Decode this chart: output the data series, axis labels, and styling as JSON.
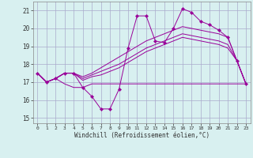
{
  "x": [
    0,
    1,
    2,
    3,
    4,
    5,
    6,
    7,
    8,
    9,
    10,
    11,
    12,
    13,
    14,
    15,
    16,
    17,
    18,
    19,
    20,
    21,
    22,
    23
  ],
  "temp_line": [
    17.5,
    17.0,
    17.2,
    17.5,
    17.5,
    16.7,
    16.2,
    15.5,
    15.5,
    16.6,
    18.9,
    20.7,
    20.7,
    19.3,
    19.2,
    20.0,
    21.1,
    20.9,
    20.4,
    20.2,
    19.9,
    19.5,
    18.2,
    16.9
  ],
  "min_line": [
    17.5,
    17.0,
    17.2,
    16.9,
    16.7,
    16.7,
    16.9,
    16.9,
    16.9,
    16.9,
    16.9,
    16.9,
    16.9,
    16.9,
    16.9,
    16.9,
    16.9,
    16.9,
    16.9,
    16.9,
    16.9,
    16.9,
    16.9,
    16.9
  ],
  "line2": [
    17.5,
    17.0,
    17.2,
    17.5,
    17.5,
    17.3,
    17.5,
    17.8,
    18.1,
    18.4,
    18.7,
    19.0,
    19.3,
    19.5,
    19.7,
    19.9,
    20.1,
    20.0,
    19.9,
    19.8,
    19.7,
    19.5,
    18.2,
    16.9
  ],
  "line3": [
    17.5,
    17.0,
    17.2,
    17.5,
    17.5,
    17.2,
    17.4,
    17.6,
    17.8,
    18.0,
    18.3,
    18.6,
    18.9,
    19.1,
    19.3,
    19.5,
    19.7,
    19.6,
    19.5,
    19.4,
    19.3,
    19.1,
    18.2,
    16.9
  ],
  "line4": [
    17.5,
    17.0,
    17.2,
    17.5,
    17.5,
    17.1,
    17.3,
    17.4,
    17.6,
    17.8,
    18.1,
    18.4,
    18.7,
    18.9,
    19.1,
    19.3,
    19.5,
    19.4,
    19.3,
    19.2,
    19.1,
    18.9,
    18.2,
    16.9
  ],
  "color": "#990099",
  "bg_color": "#d8f0f0",
  "grid_color": "#aaaacc",
  "ylabel_values": [
    15,
    16,
    17,
    18,
    19,
    20,
    21
  ],
  "xlabel": "Windchill (Refroidissement éolien,°C)",
  "ylim": [
    14.7,
    21.5
  ],
  "xlim": [
    -0.5,
    23.5
  ]
}
